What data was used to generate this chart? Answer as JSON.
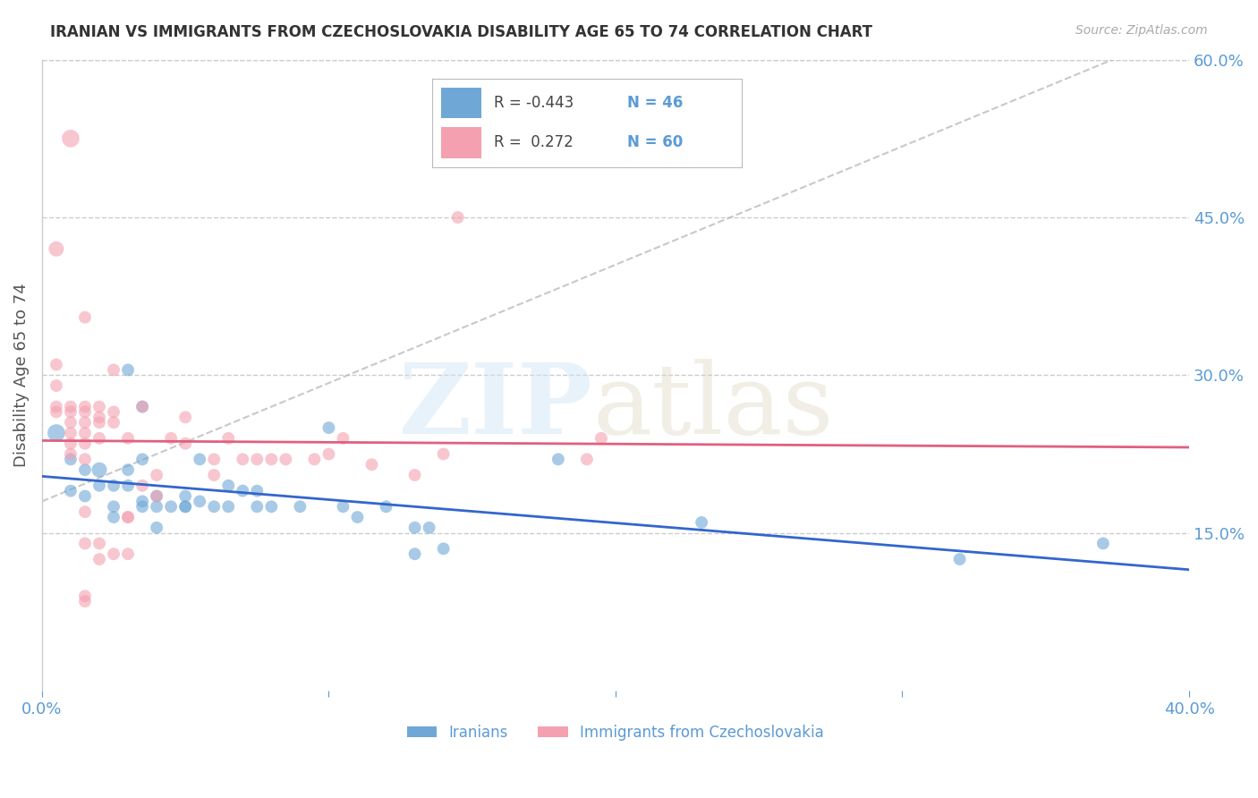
{
  "title": "IRANIAN VS IMMIGRANTS FROM CZECHOSLOVAKIA DISABILITY AGE 65 TO 74 CORRELATION CHART",
  "source": "Source: ZipAtlas.com",
  "ylabel": "Disability Age 65 to 74",
  "xlim": [
    0.0,
    0.4
  ],
  "ylim": [
    0.0,
    0.6
  ],
  "yticks": [
    0.15,
    0.3,
    0.45,
    0.6
  ],
  "ytick_labels": [
    "15.0%",
    "30.0%",
    "45.0%",
    "60.0%"
  ],
  "legend_blue_r": "-0.443",
  "legend_blue_n": "46",
  "legend_pink_r": "0.272",
  "legend_pink_n": "60",
  "blue_color": "#6fa8d6",
  "pink_color": "#f4a0b0",
  "trend_blue_color": "#3366cc",
  "trend_pink_color": "#e06080",
  "axis_color": "#5b9bd5",
  "blue_scatter": [
    [
      0.005,
      0.245
    ],
    [
      0.01,
      0.22
    ],
    [
      0.01,
      0.19
    ],
    [
      0.015,
      0.21
    ],
    [
      0.015,
      0.185
    ],
    [
      0.02,
      0.21
    ],
    [
      0.02,
      0.195
    ],
    [
      0.025,
      0.195
    ],
    [
      0.025,
      0.175
    ],
    [
      0.025,
      0.165
    ],
    [
      0.03,
      0.305
    ],
    [
      0.03,
      0.21
    ],
    [
      0.03,
      0.195
    ],
    [
      0.035,
      0.27
    ],
    [
      0.035,
      0.22
    ],
    [
      0.035,
      0.18
    ],
    [
      0.035,
      0.175
    ],
    [
      0.04,
      0.185
    ],
    [
      0.04,
      0.175
    ],
    [
      0.04,
      0.155
    ],
    [
      0.045,
      0.175
    ],
    [
      0.05,
      0.185
    ],
    [
      0.05,
      0.175
    ],
    [
      0.05,
      0.175
    ],
    [
      0.055,
      0.22
    ],
    [
      0.055,
      0.18
    ],
    [
      0.06,
      0.175
    ],
    [
      0.065,
      0.195
    ],
    [
      0.065,
      0.175
    ],
    [
      0.07,
      0.19
    ],
    [
      0.075,
      0.19
    ],
    [
      0.075,
      0.175
    ],
    [
      0.08,
      0.175
    ],
    [
      0.09,
      0.175
    ],
    [
      0.1,
      0.25
    ],
    [
      0.105,
      0.175
    ],
    [
      0.11,
      0.165
    ],
    [
      0.12,
      0.175
    ],
    [
      0.13,
      0.155
    ],
    [
      0.13,
      0.13
    ],
    [
      0.135,
      0.155
    ],
    [
      0.14,
      0.135
    ],
    [
      0.18,
      0.22
    ],
    [
      0.23,
      0.16
    ],
    [
      0.32,
      0.125
    ],
    [
      0.37,
      0.14
    ]
  ],
  "pink_scatter": [
    [
      0.005,
      0.42
    ],
    [
      0.005,
      0.31
    ],
    [
      0.005,
      0.29
    ],
    [
      0.005,
      0.27
    ],
    [
      0.005,
      0.265
    ],
    [
      0.01,
      0.525
    ],
    [
      0.01,
      0.27
    ],
    [
      0.01,
      0.265
    ],
    [
      0.01,
      0.255
    ],
    [
      0.01,
      0.245
    ],
    [
      0.01,
      0.235
    ],
    [
      0.01,
      0.225
    ],
    [
      0.015,
      0.355
    ],
    [
      0.015,
      0.27
    ],
    [
      0.015,
      0.265
    ],
    [
      0.015,
      0.255
    ],
    [
      0.015,
      0.245
    ],
    [
      0.015,
      0.235
    ],
    [
      0.015,
      0.22
    ],
    [
      0.015,
      0.17
    ],
    [
      0.015,
      0.14
    ],
    [
      0.015,
      0.09
    ],
    [
      0.015,
      0.085
    ],
    [
      0.02,
      0.27
    ],
    [
      0.02,
      0.26
    ],
    [
      0.02,
      0.255
    ],
    [
      0.02,
      0.24
    ],
    [
      0.02,
      0.14
    ],
    [
      0.02,
      0.125
    ],
    [
      0.025,
      0.305
    ],
    [
      0.025,
      0.265
    ],
    [
      0.025,
      0.255
    ],
    [
      0.025,
      0.13
    ],
    [
      0.03,
      0.24
    ],
    [
      0.03,
      0.165
    ],
    [
      0.03,
      0.165
    ],
    [
      0.03,
      0.13
    ],
    [
      0.035,
      0.27
    ],
    [
      0.035,
      0.195
    ],
    [
      0.04,
      0.205
    ],
    [
      0.04,
      0.185
    ],
    [
      0.045,
      0.24
    ],
    [
      0.05,
      0.26
    ],
    [
      0.05,
      0.235
    ],
    [
      0.06,
      0.22
    ],
    [
      0.06,
      0.205
    ],
    [
      0.065,
      0.24
    ],
    [
      0.07,
      0.22
    ],
    [
      0.075,
      0.22
    ],
    [
      0.08,
      0.22
    ],
    [
      0.085,
      0.22
    ],
    [
      0.095,
      0.22
    ],
    [
      0.1,
      0.225
    ],
    [
      0.105,
      0.24
    ],
    [
      0.115,
      0.215
    ],
    [
      0.13,
      0.205
    ],
    [
      0.14,
      0.225
    ],
    [
      0.145,
      0.45
    ],
    [
      0.19,
      0.22
    ],
    [
      0.195,
      0.24
    ]
  ],
  "blue_sizes": [
    200,
    100,
    100,
    100,
    100,
    150,
    100,
    100,
    100,
    100,
    100,
    100,
    100,
    100,
    100,
    100,
    100,
    100,
    100,
    100,
    100,
    100,
    100,
    100,
    100,
    100,
    100,
    100,
    100,
    100,
    100,
    100,
    100,
    100,
    100,
    100,
    100,
    100,
    100,
    100,
    100,
    100,
    100,
    100,
    100,
    100
  ],
  "pink_sizes": [
    150,
    100,
    100,
    100,
    100,
    200,
    100,
    100,
    100,
    100,
    100,
    100,
    100,
    100,
    100,
    100,
    100,
    100,
    100,
    100,
    100,
    100,
    100,
    100,
    100,
    100,
    100,
    100,
    100,
    100,
    100,
    100,
    100,
    100,
    100,
    100,
    100,
    100,
    100,
    100,
    100,
    100,
    100,
    100,
    100,
    100,
    100,
    100,
    100,
    100,
    100,
    100,
    100,
    100,
    100,
    100,
    100,
    100,
    100,
    100
  ]
}
